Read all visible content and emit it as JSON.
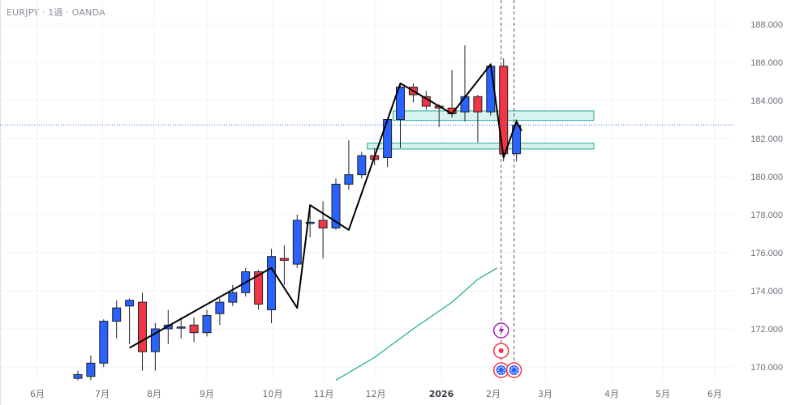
{
  "header": {
    "title": "EURJPY · 1週 · OANDA"
  },
  "chart_data": {
    "type": "candlestick",
    "symbol": "EURJPY",
    "timeframe": "1週",
    "source": "OANDA",
    "ylim": [
      169.3,
      189.0
    ],
    "y_ticks": [
      "188.000",
      "186.000",
      "184.000",
      "182.000",
      "180.000",
      "178.000",
      "176.000",
      "174.000",
      "172.000",
      "170.000"
    ],
    "x_ticks": [
      {
        "label": "6月",
        "bold": false
      },
      {
        "label": "7月",
        "bold": false
      },
      {
        "label": "8月",
        "bold": false
      },
      {
        "label": "9月",
        "bold": false
      },
      {
        "label": "10月",
        "bold": false
      },
      {
        "label": "11月",
        "bold": false
      },
      {
        "label": "12月",
        "bold": false
      },
      {
        "label": "2026",
        "bold": true
      },
      {
        "label": "2月",
        "bold": false
      },
      {
        "label": "3月",
        "bold": false
      },
      {
        "label": "4月",
        "bold": false
      },
      {
        "label": "5月",
        "bold": false
      },
      {
        "label": "6月",
        "bold": false
      }
    ],
    "current_price": "182.714",
    "colors": {
      "up": "#2962ff",
      "down": "#f23645",
      "wick": "#222222",
      "zigzag": "#000000",
      "ma": "#22ab94",
      "zone_fill": "#d7f3f0",
      "zone_stroke": "#22ab94",
      "price_line": "#2962ff",
      "grid": "#f0f3fa"
    },
    "candles": [
      {
        "o": 169.4,
        "h": 169.8,
        "l": 169.3,
        "c": 169.6
      },
      {
        "o": 169.5,
        "h": 170.6,
        "l": 169.3,
        "c": 170.2
      },
      {
        "o": 170.2,
        "h": 172.5,
        "l": 170.0,
        "c": 172.4
      },
      {
        "o": 172.4,
        "h": 173.5,
        "l": 171.5,
        "c": 173.1
      },
      {
        "o": 173.2,
        "h": 173.6,
        "l": 171.2,
        "c": 173.5
      },
      {
        "o": 173.4,
        "h": 173.9,
        "l": 169.8,
        "c": 170.8
      },
      {
        "o": 170.8,
        "h": 172.3,
        "l": 169.8,
        "c": 172.0
      },
      {
        "o": 172.0,
        "h": 173.0,
        "l": 171.2,
        "c": 172.2
      },
      {
        "o": 172.1,
        "h": 172.6,
        "l": 171.5,
        "c": 172.1
      },
      {
        "o": 172.2,
        "h": 172.6,
        "l": 171.3,
        "c": 171.8
      },
      {
        "o": 171.8,
        "h": 173.0,
        "l": 171.6,
        "c": 172.7
      },
      {
        "o": 172.8,
        "h": 173.6,
        "l": 172.2,
        "c": 173.4
      },
      {
        "o": 173.4,
        "h": 174.3,
        "l": 173.2,
        "c": 173.9
      },
      {
        "o": 173.9,
        "h": 175.2,
        "l": 173.7,
        "c": 175.0
      },
      {
        "o": 175.0,
        "h": 175.1,
        "l": 173.0,
        "c": 173.3
      },
      {
        "o": 173.0,
        "h": 176.2,
        "l": 172.3,
        "c": 175.8
      },
      {
        "o": 175.7,
        "h": 176.4,
        "l": 174.3,
        "c": 175.6
      },
      {
        "o": 175.4,
        "h": 178.0,
        "l": 175.2,
        "c": 177.7
      },
      {
        "o": 177.6,
        "h": 178.3,
        "l": 176.8,
        "c": 177.6
      },
      {
        "o": 177.7,
        "h": 178.7,
        "l": 175.7,
        "c": 177.3
      },
      {
        "o": 177.3,
        "h": 179.9,
        "l": 177.2,
        "c": 179.6
      },
      {
        "o": 179.6,
        "h": 181.9,
        "l": 179.3,
        "c": 180.1
      },
      {
        "o": 180.1,
        "h": 181.3,
        "l": 179.9,
        "c": 181.1
      },
      {
        "o": 181.1,
        "h": 181.5,
        "l": 180.6,
        "c": 180.9
      },
      {
        "o": 181.0,
        "h": 182.9,
        "l": 180.5,
        "c": 183.0
      },
      {
        "o": 183.0,
        "h": 184.9,
        "l": 181.5,
        "c": 184.7
      },
      {
        "o": 184.7,
        "h": 184.9,
        "l": 183.9,
        "c": 184.3
      },
      {
        "o": 184.2,
        "h": 184.5,
        "l": 183.5,
        "c": 183.7
      },
      {
        "o": 183.7,
        "h": 183.8,
        "l": 182.6,
        "c": 183.6
      },
      {
        "o": 183.6,
        "h": 185.6,
        "l": 183.1,
        "c": 183.3
      },
      {
        "o": 183.4,
        "h": 186.9,
        "l": 182.9,
        "c": 184.2
      },
      {
        "o": 184.2,
        "h": 184.3,
        "l": 181.8,
        "c": 183.4
      },
      {
        "o": 183.4,
        "h": 185.8,
        "l": 183.2,
        "c": 185.8
      },
      {
        "o": 185.8,
        "h": 186.2,
        "l": 180.8,
        "c": 181.2
      },
      {
        "o": 181.2,
        "h": 183.0,
        "l": 180.8,
        "c": 182.7
      }
    ],
    "zigzag": [
      [
        4,
        171.0
      ],
      [
        15,
        175.2
      ],
      [
        17,
        173.1
      ],
      [
        18,
        178.5
      ],
      [
        21,
        177.2
      ],
      [
        25,
        184.9
      ],
      [
        29,
        183.3
      ],
      [
        32,
        185.9
      ],
      [
        33,
        181.0
      ],
      [
        34,
        182.9
      ],
      [
        34.4,
        182.4
      ]
    ],
    "moving_average": [
      [
        20,
        169.3
      ],
      [
        23,
        170.5
      ],
      [
        26,
        172.0
      ],
      [
        29,
        173.4
      ],
      [
        31,
        174.6
      ],
      [
        32.5,
        175.2
      ]
    ],
    "zones": [
      {
        "from": 24.75,
        "to": 40.0,
        "low": 182.95,
        "high": 183.45
      },
      {
        "from": 22.75,
        "to": 40.0,
        "low": 181.45,
        "high": 181.75
      }
    ],
    "event_lines": [
      33.0,
      34.0
    ]
  }
}
